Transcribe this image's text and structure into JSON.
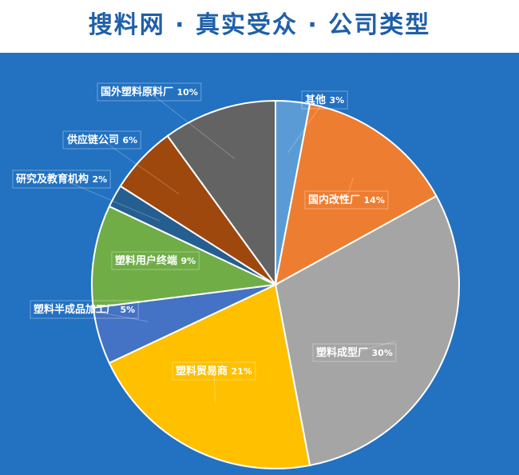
{
  "title": "搜料网 · 真实受众 · 公司类型",
  "chart_data": {
    "type": "pie",
    "slices": [
      {
        "label": "其他",
        "value": 3,
        "display": "3%",
        "color": "#5b9bd5"
      },
      {
        "label": "国内改性厂",
        "value": 14,
        "display": "14%",
        "color": "#ed7d31"
      },
      {
        "label": "塑料成型厂",
        "value": 30,
        "display": "30%",
        "color": "#a5a5a5"
      },
      {
        "label": "塑料贸易商",
        "value": 21,
        "display": "21%",
        "color": "#ffc000"
      },
      {
        "label": "塑料半成品加工厂",
        "value": 5,
        "display": "5%",
        "color": "#4472c4"
      },
      {
        "label": "塑料用户终端",
        "value": 9,
        "display": "9%",
        "color": "#70ad47"
      },
      {
        "label": "研究及教育机构",
        "value": 2,
        "display": "2%",
        "color": "#255e91"
      },
      {
        "label": "供应链公司",
        "value": 6,
        "display": "6%",
        "color": "#9e480e"
      },
      {
        "label": "国外塑料原料厂",
        "value": 10,
        "display": "10%",
        "color": "#636363"
      }
    ],
    "label_style": "callout",
    "background": "#2371c1"
  }
}
